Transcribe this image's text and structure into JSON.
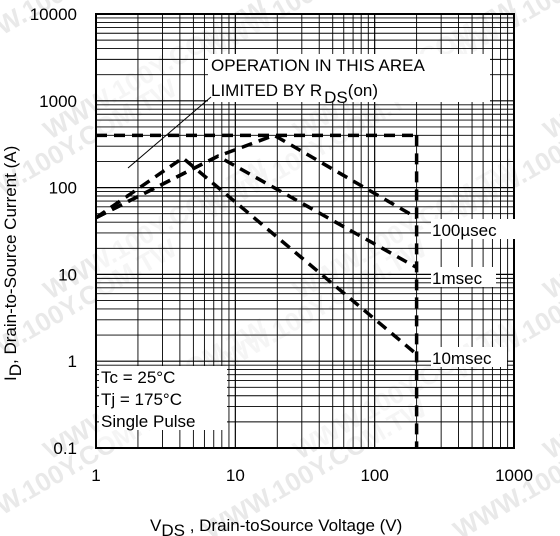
{
  "chart_data": {
    "type": "line",
    "x_scale": "log",
    "y_scale": "log",
    "xlim": [
      1,
      1000
    ],
    "ylim": [
      0.1,
      10000
    ],
    "grid": true,
    "x_ticks": [
      "1",
      "10",
      "100",
      "1000"
    ],
    "y_ticks": [
      "0.1",
      "1",
      "10",
      "100",
      "1000",
      "10000"
    ],
    "xlabel": {
      "main": "V",
      "sub": "DS",
      "rest": " , Drain-toSource Voltage (V)"
    },
    "ylabel": {
      "main": "I",
      "sub": "D",
      "rest": ",  Drain-to-Source Current (A)"
    },
    "series": [
      {
        "name": "100µsec",
        "x": [
          1,
          7.5,
          19,
          200
        ],
        "y": [
          45,
          230,
          400,
          45
        ]
      },
      {
        "name": "1msec",
        "x": [
          1,
          7.5,
          200
        ],
        "y": [
          45,
          230,
          12
        ]
      },
      {
        "name": "10msec",
        "x": [
          1,
          4.2,
          200
        ],
        "y": [
          45,
          220,
          1.2
        ]
      }
    ],
    "current_limit": {
      "y": 400,
      "x": [
        1,
        200
      ]
    },
    "voltage_limit": {
      "x": 200,
      "y": [
        0.1,
        400
      ]
    },
    "annotations": {
      "operation_line1": "OPERATION IN THIS AREA",
      "operation_line2_prefix": "LIMITED BY R",
      "operation_line2_sub": "DS",
      "operation_line2_suffix": "(on)",
      "tc": "Tc = 25°C",
      "tj": "Tj = 175°C",
      "pulse": "Single Pulse"
    },
    "watermark": "WWW.100Y.COM.TW"
  }
}
